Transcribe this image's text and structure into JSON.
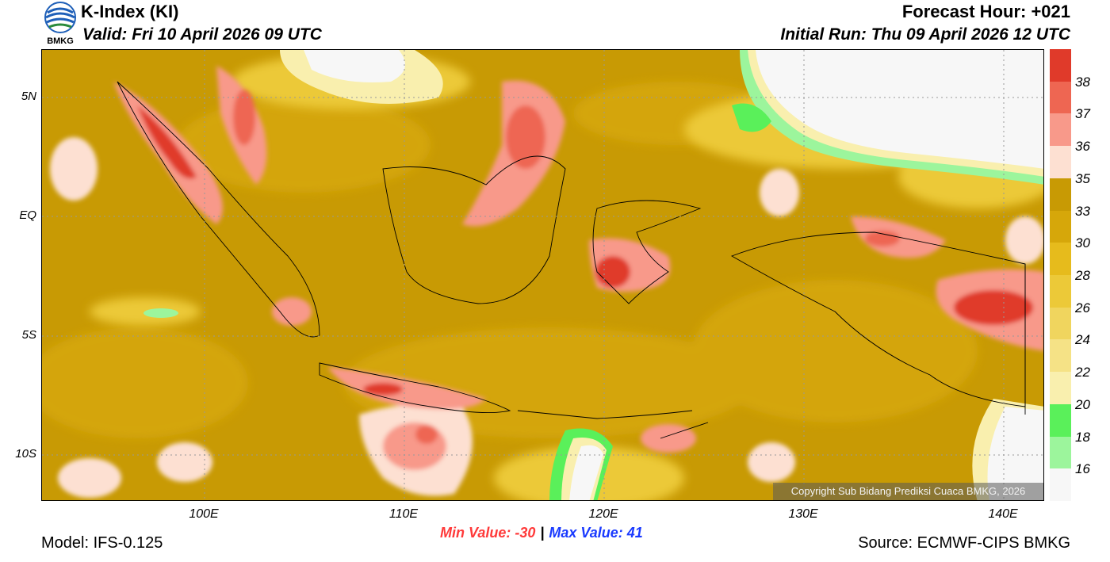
{
  "header": {
    "title": "K-Index (KI)",
    "valid": "Valid: Fri 10 April 2026 09 UTC",
    "forecast_hour": "Forecast Hour: +021",
    "initial_run": "Initial Run: Thu 09 April 2026 12 UTC",
    "logo_text": "BMKG"
  },
  "map": {
    "lat_labels": [
      "5N",
      "EQ",
      "5S",
      "10S"
    ],
    "lon_labels": [
      "100E",
      "110E",
      "120E",
      "130E",
      "140E"
    ],
    "copyright": "Copyright Sub Bidang Prediksi Cuaca BMKG, 2026"
  },
  "colorbar": {
    "labels": [
      "38",
      "37",
      "36",
      "35",
      "33",
      "30",
      "28",
      "26",
      "24",
      "22",
      "20",
      "18",
      "16"
    ],
    "colors": [
      "#e03a2a",
      "#ee6652",
      "#f8998a",
      "#fde0d2",
      "#c89a04",
      "#d6a70a",
      "#e6bb1c",
      "#ecc938",
      "#f0d55e",
      "#f5e286",
      "#f9efae",
      "#5af05a",
      "#9cf59c",
      "#f7f7f7"
    ]
  },
  "stats": {
    "min_value": "Min Value: -30",
    "separator": "|",
    "max_value": "Max Value:  41"
  },
  "footer": {
    "model": "Model: IFS-0.125",
    "source": "Source: ECMWF-CIPS BMKG"
  }
}
